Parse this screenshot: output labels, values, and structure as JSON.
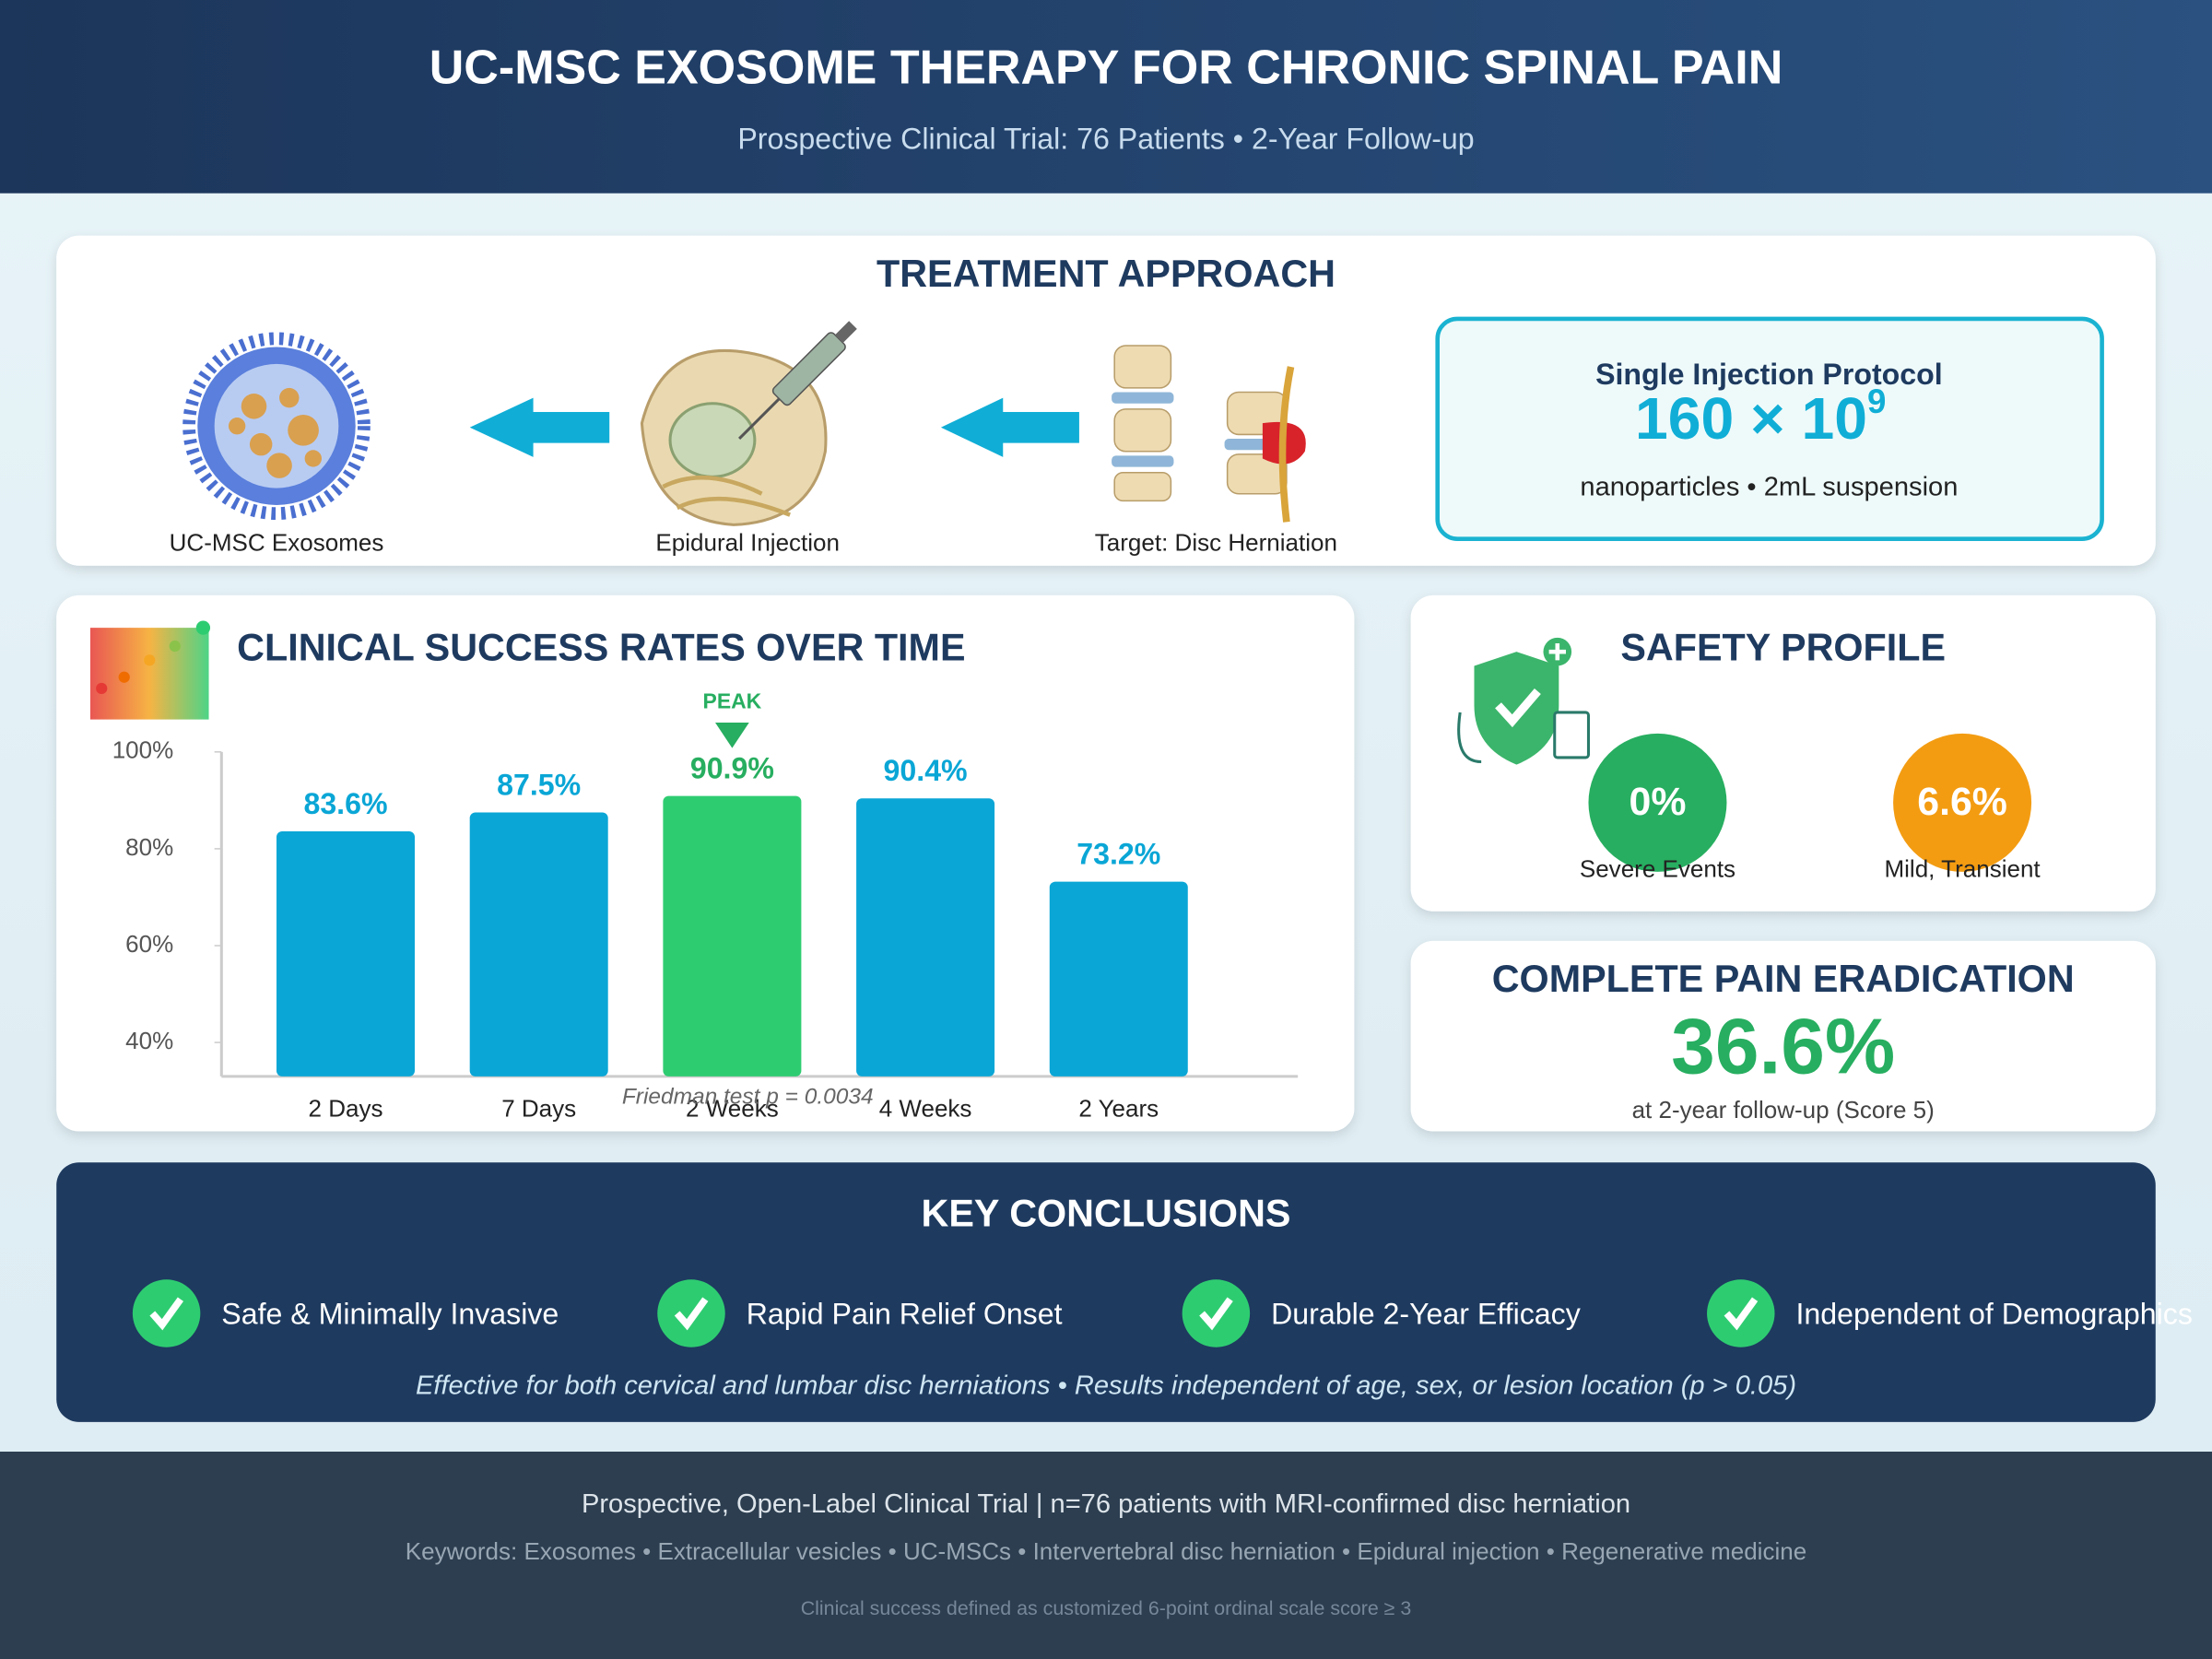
{
  "header": {
    "title": "UC-MSC EXOSOME THERAPY FOR CHRONIC SPINAL PAIN",
    "subtitle": "Prospective Clinical Trial: 76 Patients • 2-Year Follow-up"
  },
  "treatment": {
    "title": "TREATMENT APPROACH",
    "steps": [
      "UC-MSC Exosomes",
      "Epidural Injection",
      "Target: Disc Herniation"
    ],
    "protocol": {
      "title": "Single Injection Protocol",
      "dose_base": "160 × 10",
      "dose_exponent": "9",
      "detail": "nanoparticles • 2mL suspension"
    }
  },
  "chart_data": {
    "type": "bar",
    "title": "CLINICAL SUCCESS RATES OVER TIME",
    "categories": [
      "2 Days",
      "7 Days",
      "2 Weeks",
      "4 Weeks",
      "2 Years"
    ],
    "values": [
      83.6,
      87.5,
      90.9,
      90.4,
      73.2
    ],
    "value_labels": [
      "83.6%",
      "87.5%",
      "90.9%",
      "90.4%",
      "73.2%"
    ],
    "colors": [
      "#0aa6d6",
      "#0aa6d6",
      "#2ecc71",
      "#0aa6d6",
      "#0aa6d6"
    ],
    "ylim": [
      33,
      100
    ],
    "yticks": [
      {
        "value": 40,
        "label": "40%"
      },
      {
        "value": 60,
        "label": "60%"
      },
      {
        "value": 80,
        "label": "80%"
      },
      {
        "value": 100,
        "label": "100%"
      }
    ],
    "annotation": "PEAK",
    "note": "Friedman test p = 0.0034"
  },
  "safety": {
    "title": "SAFETY PROFILE",
    "metrics": [
      {
        "value": "0%",
        "label": "Severe Events",
        "color": "#27ae60"
      },
      {
        "value": "6.6%",
        "label": "Mild, Transient",
        "color": "#f39c12"
      }
    ]
  },
  "eradication": {
    "title": "COMPLETE PAIN ERADICATION",
    "value": "36.6%",
    "detail": "at 2-year follow-up (Score 5)"
  },
  "conclusions": {
    "title": "KEY CONCLUSIONS",
    "items": [
      "Safe & Minimally Invasive",
      "Rapid Pain Relief Onset",
      "Durable 2-Year Efficacy",
      "Independent of Demographics"
    ],
    "note": "Effective for both cervical and lumbar disc herniations • Results independent of age, sex, or lesion location (p > 0.05)"
  },
  "footer": {
    "design": "Prospective, Open-Label Clinical Trial | n=76 patients with MRI-confirmed disc herniation",
    "keywords": "Keywords: Exosomes • Extracellular vesicles • UC-MSCs • Intervertebral disc herniation • Epidural injection • Regenerative medicine",
    "definition": "Clinical success defined as customized 6-point ordinal scale score ≥ 3"
  }
}
